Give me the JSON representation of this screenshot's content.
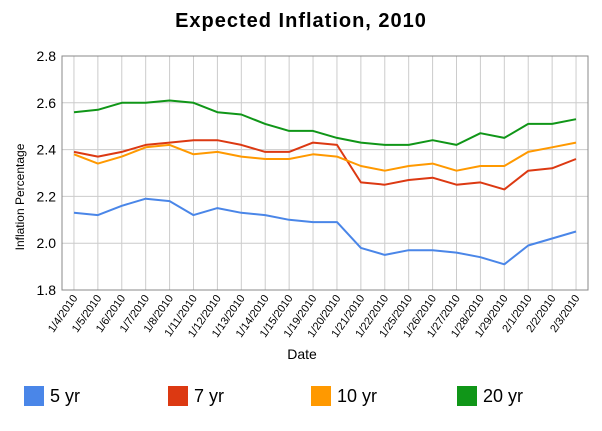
{
  "chart_data": {
    "type": "line",
    "title": "Expected Inflation, 2010",
    "xlabel": "Date",
    "ylabel": "Inflation Percentage",
    "ylim": [
      1.8,
      2.8
    ],
    "yticks": [
      "1.8",
      "2.0",
      "2.2",
      "2.4",
      "2.6",
      "2.8"
    ],
    "grid": true,
    "legend_position": "bottom",
    "categories": [
      "1/4/2010",
      "1/5/2010",
      "1/6/2010",
      "1/7/2010",
      "1/8/2010",
      "1/11/2010",
      "1/12/2010",
      "1/13/2010",
      "1/14/2010",
      "1/15/2010",
      "1/19/2010",
      "1/20/2010",
      "1/21/2010",
      "1/22/2010",
      "1/25/2010",
      "1/26/2010",
      "1/27/2010",
      "1/28/2010",
      "1/29/2010",
      "2/1/2010",
      "2/2/2010",
      "2/3/2010"
    ],
    "series": [
      {
        "name": "5 yr",
        "color": "#4a86e8",
        "values": [
          2.13,
          2.12,
          2.16,
          2.19,
          2.18,
          2.12,
          2.15,
          2.13,
          2.12,
          2.1,
          2.09,
          2.09,
          1.98,
          1.95,
          1.97,
          1.97,
          1.96,
          1.94,
          1.91,
          1.99,
          2.02,
          2.05
        ]
      },
      {
        "name": "7 yr",
        "color": "#dc3912",
        "values": [
          2.39,
          2.37,
          2.39,
          2.42,
          2.43,
          2.44,
          2.44,
          2.42,
          2.39,
          2.39,
          2.43,
          2.42,
          2.26,
          2.25,
          2.27,
          2.28,
          2.25,
          2.26,
          2.23,
          2.31,
          2.32,
          2.36
        ]
      },
      {
        "name": "10 yr",
        "color": "#ff9900",
        "values": [
          2.38,
          2.34,
          2.37,
          2.41,
          2.42,
          2.38,
          2.39,
          2.37,
          2.36,
          2.36,
          2.38,
          2.37,
          2.33,
          2.31,
          2.33,
          2.34,
          2.31,
          2.33,
          2.33,
          2.39,
          2.41,
          2.43
        ]
      },
      {
        "name": "20 yr",
        "color": "#109618",
        "values": [
          2.56,
          2.57,
          2.6,
          2.6,
          2.61,
          2.6,
          2.56,
          2.55,
          2.51,
          2.48,
          2.48,
          2.45,
          2.43,
          2.42,
          2.42,
          2.44,
          2.42,
          2.47,
          2.45,
          2.51,
          2.51,
          2.53
        ]
      }
    ]
  }
}
